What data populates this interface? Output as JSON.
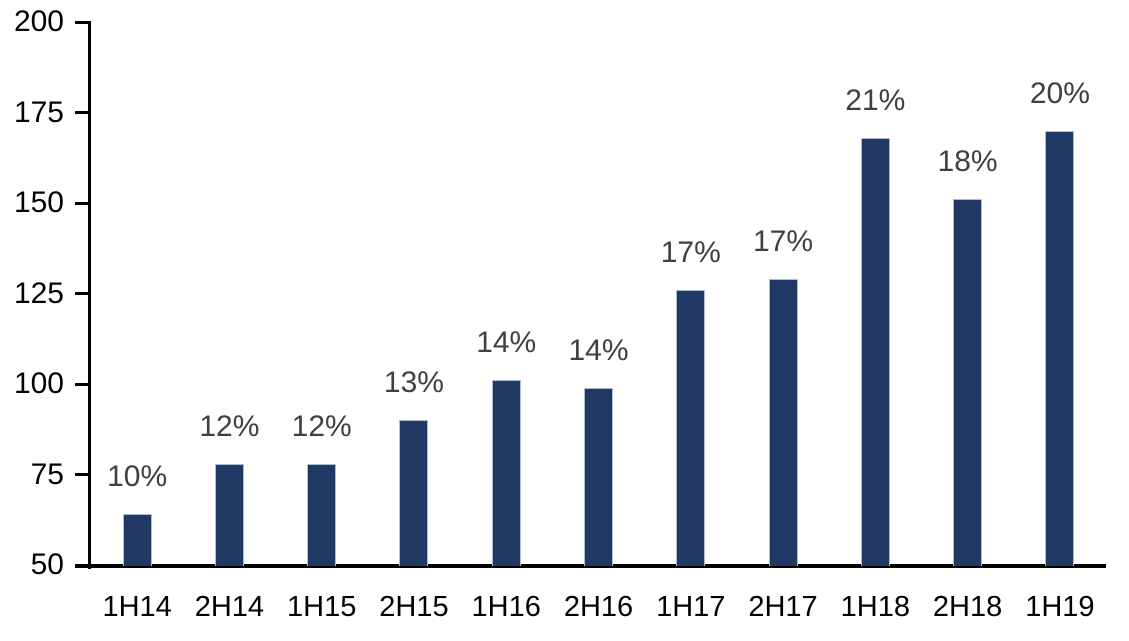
{
  "chart_data": {
    "type": "bar",
    "categories": [
      "1H14",
      "2H14",
      "1H15",
      "2H15",
      "1H16",
      "2H16",
      "1H17",
      "2H17",
      "1H18",
      "2H18",
      "1H19"
    ],
    "values": [
      64,
      78,
      78,
      90,
      101,
      99,
      126,
      129,
      168,
      151,
      170
    ],
    "bar_labels": [
      "10%",
      "12%",
      "12%",
      "13%",
      "14%",
      "14%",
      "17%",
      "17%",
      "21%",
      "18%",
      "20%"
    ],
    "title": "",
    "xlabel": "",
    "ylabel": "",
    "ylim": [
      50,
      200
    ],
    "yticks": [
      50,
      75,
      100,
      125,
      150,
      175,
      200
    ],
    "grid": false,
    "legend": false,
    "colors": {
      "bar_fill": "#1F3864",
      "bar_border": "#AEBDD3",
      "data_label": "#404040",
      "axis": "#000000",
      "background": "#FFFFFF"
    }
  }
}
